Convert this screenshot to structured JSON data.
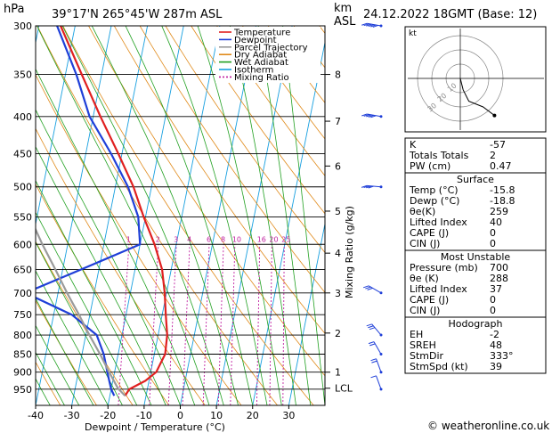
{
  "chart_data": {
    "type": "line",
    "title": "39°17'N  265°45'W  287m  ASL",
    "date": "24.12.2022  18GMT  (Base: 12)",
    "yunit": "hPa",
    "km_label": "km",
    "asl_label": "ASL",
    "xlabel": "Dewpoint / Temperature (°C)",
    "mixing_axis_label": "Mixing Ratio (g/kg)",
    "pressure_levels": [
      300,
      350,
      400,
      450,
      500,
      550,
      600,
      650,
      700,
      750,
      800,
      850,
      900,
      950
    ],
    "temp_ticks": [
      -40,
      -30,
      -20,
      -10,
      0,
      10,
      20,
      30
    ],
    "xlim": [
      -40,
      40
    ],
    "ylim": [
      1000,
      300
    ],
    "km_ticks": [
      {
        "label": "8",
        "p": 350
      },
      {
        "label": "7",
        "p": 406
      },
      {
        "label": "6",
        "p": 468
      },
      {
        "label": "5",
        "p": 540
      },
      {
        "label": "4",
        "p": 617
      },
      {
        "label": "3",
        "p": 700
      },
      {
        "label": "2",
        "p": 795
      },
      {
        "label": "1",
        "p": 900
      },
      {
        "label": "LCL",
        "p": 947
      }
    ],
    "mixing_ratio_labels": [
      "1",
      "2",
      "3",
      "4",
      "6",
      "8",
      "10",
      "16",
      "20",
      "25"
    ],
    "mixing_ratio_values": [
      1,
      2,
      3,
      4,
      6,
      8,
      10,
      16,
      20,
      25
    ],
    "series": [
      {
        "name": "Temperature",
        "color": "#e02020",
        "points": [
          {
            "p": 970,
            "t": -15.8
          },
          {
            "p": 950,
            "t": -15.0
          },
          {
            "p": 925,
            "t": -11.0
          },
          {
            "p": 900,
            "t": -8.5
          },
          {
            "p": 850,
            "t": -7.0
          },
          {
            "p": 800,
            "t": -7.5
          },
          {
            "p": 750,
            "t": -9.0
          },
          {
            "p": 700,
            "t": -10.5
          },
          {
            "p": 650,
            "t": -12.5
          },
          {
            "p": 600,
            "t": -16.0
          },
          {
            "p": 550,
            "t": -20.5
          },
          {
            "p": 500,
            "t": -25.0
          },
          {
            "p": 450,
            "t": -31.0
          },
          {
            "p": 400,
            "t": -38.0
          },
          {
            "p": 350,
            "t": -45.5
          },
          {
            "p": 300,
            "t": -54.0
          }
        ]
      },
      {
        "name": "Dewpoint",
        "color": "#1f3fd8",
        "points": [
          {
            "p": 970,
            "t": -18.8
          },
          {
            "p": 950,
            "t": -20.0
          },
          {
            "p": 925,
            "t": -21.0
          },
          {
            "p": 900,
            "t": -22.0
          },
          {
            "p": 850,
            "t": -24.0
          },
          {
            "p": 800,
            "t": -27.0
          },
          {
            "p": 750,
            "t": -35.0
          },
          {
            "p": 700,
            "t": -49.0
          },
          {
            "p": 650,
            "t": -35.0
          },
          {
            "p": 600,
            "t": -20.0
          },
          {
            "p": 550,
            "t": -22.0
          },
          {
            "p": 500,
            "t": -26.5
          },
          {
            "p": 450,
            "t": -33.0
          },
          {
            "p": 400,
            "t": -41.0
          },
          {
            "p": 350,
            "t": -47.0
          },
          {
            "p": 300,
            "t": -55.0
          }
        ]
      },
      {
        "name": "Parcel Trajectory",
        "color": "#9a9a9a",
        "points": [
          {
            "p": 970,
            "t": -15.8
          },
          {
            "p": 947,
            "t": -18.2
          },
          {
            "p": 900,
            "t": -21.5
          },
          {
            "p": 850,
            "t": -25.0
          },
          {
            "p": 800,
            "t": -29.0
          },
          {
            "p": 750,
            "t": -33.0
          },
          {
            "p": 700,
            "t": -37.5
          },
          {
            "p": 650,
            "t": -42.0
          },
          {
            "p": 600,
            "t": -47.0
          },
          {
            "p": 550,
            "t": -52.0
          },
          {
            "p": 500,
            "t": -57.5
          },
          {
            "p": 450,
            "t": -63.0
          },
          {
            "p": 400,
            "t": -69.0
          },
          {
            "p": 350,
            "t": -76.0
          },
          {
            "p": 300,
            "t": -84.0
          }
        ]
      }
    ],
    "wind_barbs": [
      {
        "p": 300,
        "dir": 280,
        "kt": 60
      },
      {
        "p": 400,
        "dir": 280,
        "kt": 45
      },
      {
        "p": 500,
        "dir": 275,
        "kt": 40
      },
      {
        "p": 700,
        "dir": 300,
        "kt": 30
      },
      {
        "p": 800,
        "dir": 320,
        "kt": 25
      },
      {
        "p": 850,
        "dir": 330,
        "kt": 20
      },
      {
        "p": 900,
        "dir": 340,
        "kt": 15
      },
      {
        "p": 950,
        "dir": 340,
        "kt": 10
      }
    ]
  },
  "legend": [
    {
      "label": "Temperature",
      "color": "#e02020",
      "dash": ""
    },
    {
      "label": "Dewpoint",
      "color": "#1f3fd8",
      "dash": ""
    },
    {
      "label": "Parcel Trajectory",
      "color": "#9a9a9a",
      "dash": ""
    },
    {
      "label": "Dry Adiabat",
      "color": "#e08a1a",
      "dash": ""
    },
    {
      "label": "Wet Adiabat",
      "color": "#21a021",
      "dash": ""
    },
    {
      "label": "Isotherm",
      "color": "#18a0e0",
      "dash": ""
    },
    {
      "label": "Mixing Ratio",
      "color": "#c020a0",
      "dash": "2,2"
    }
  ],
  "colors": {
    "isotherm": "#18a0e0",
    "dry_adiabat": "#e08a1a",
    "wet_adiabat": "#21a021",
    "mixing_ratio": "#c020a0",
    "wind": "#1f3fd8"
  },
  "hodograph": {
    "unit": "kt",
    "ring_labels": [
      "10",
      "20",
      "30"
    ],
    "points": [
      {
        "u": 0,
        "v": 0
      },
      {
        "u": 2,
        "v": -8
      },
      {
        "u": 6,
        "v": -16
      },
      {
        "u": 16,
        "v": -20
      },
      {
        "u": 24,
        "v": -26
      }
    ]
  },
  "indices": {
    "top": [
      {
        "k": "K",
        "v": "-57"
      },
      {
        "k": "Totals Totals",
        "v": "2"
      },
      {
        "k": "PW (cm)",
        "v": "0.47"
      }
    ],
    "surface_header": "Surface",
    "surface": [
      {
        "k": "Temp (°C)",
        "v": "-15.8"
      },
      {
        "k": "Dewp (°C)",
        "v": "-18.8"
      },
      {
        "k": "θe(K)",
        "v": "259"
      },
      {
        "k": "Lifted Index",
        "v": "40"
      },
      {
        "k": "CAPE (J)",
        "v": "0"
      },
      {
        "k": "CIN (J)",
        "v": "0"
      }
    ],
    "unstable_header": "Most Unstable",
    "unstable": [
      {
        "k": "Pressure (mb)",
        "v": "700"
      },
      {
        "k": "θe (K)",
        "v": "288"
      },
      {
        "k": "Lifted Index",
        "v": "37"
      },
      {
        "k": "CAPE (J)",
        "v": "0"
      },
      {
        "k": "CIN (J)",
        "v": "0"
      }
    ],
    "hodo_header": "Hodograph",
    "hodo": [
      {
        "k": "EH",
        "v": "-2"
      },
      {
        "k": "SREH",
        "v": "48"
      },
      {
        "k": "StmDir",
        "v": "333°"
      },
      {
        "k": "StmSpd (kt)",
        "v": "39"
      }
    ]
  },
  "footer": {
    "watermark": "© weatheronline.co.uk"
  }
}
